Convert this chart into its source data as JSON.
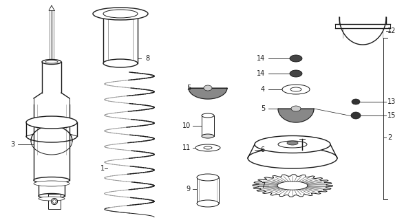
{
  "bg_color": "#ffffff",
  "line_color": "#1a1a1a",
  "fig_width": 5.87,
  "fig_height": 3.2,
  "dpi": 100,
  "font_size": 7
}
